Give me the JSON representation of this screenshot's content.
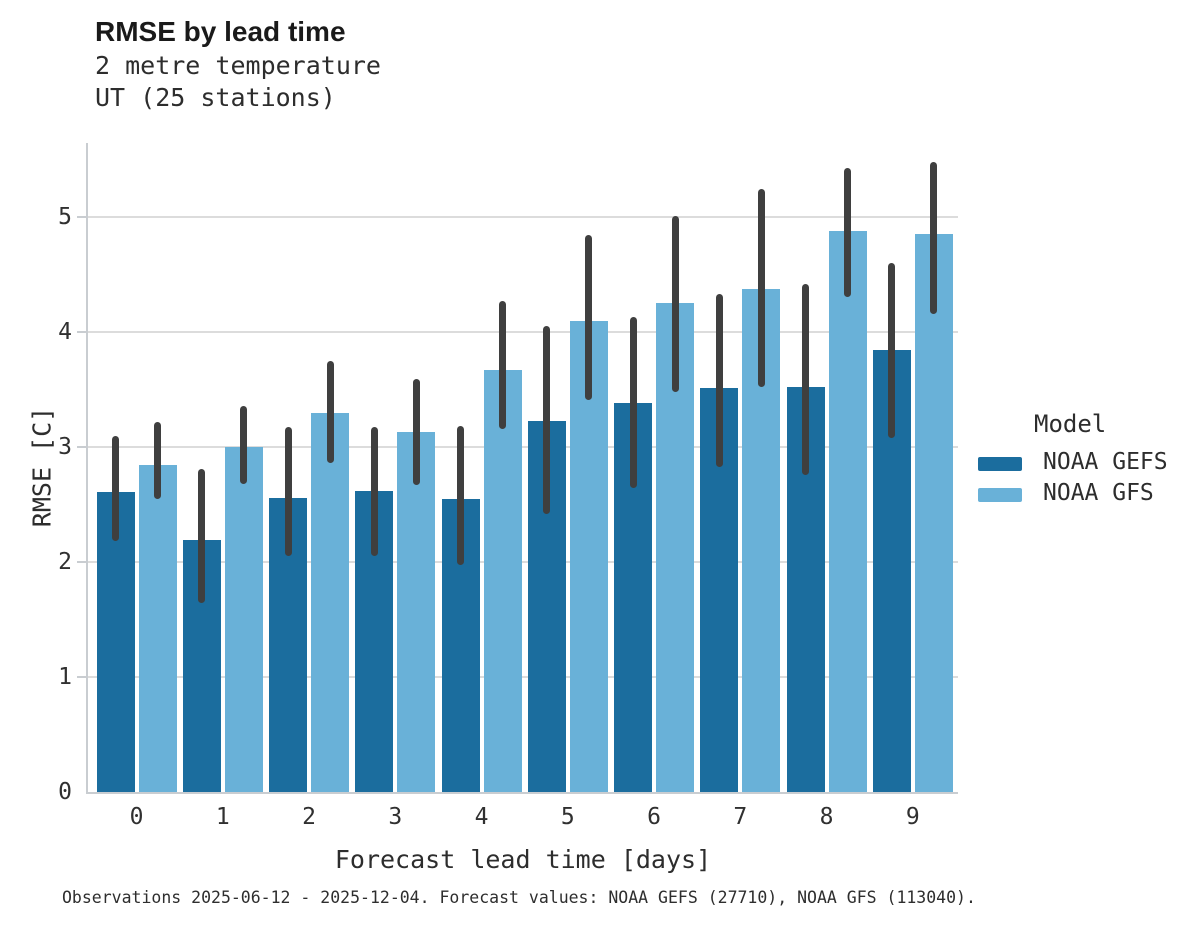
{
  "header": {
    "title": "RMSE by lead time",
    "subtitle_line1": "2 metre temperature",
    "subtitle_line2": "UT (25 stations)"
  },
  "chart_data": {
    "type": "bar",
    "title": "RMSE by lead time",
    "subtitle": [
      "2 metre temperature",
      "UT (25 stations)"
    ],
    "categories": [
      "0",
      "1",
      "2",
      "3",
      "4",
      "5",
      "6",
      "7",
      "8",
      "9"
    ],
    "xlabel": "Forecast lead time [days]",
    "ylabel": "RMSE [C]",
    "ylim": [
      0,
      5.65
    ],
    "yticks": [
      0,
      1,
      2,
      3,
      4,
      5
    ],
    "grid": true,
    "legend_title": "Model",
    "legend_position": "right",
    "error_bar_color": "#3f3f3f",
    "series": [
      {
        "name": "NOAA GEFS",
        "color": "#1b6d9e",
        "values": [
          2.61,
          2.19,
          2.56,
          2.62,
          2.55,
          3.23,
          3.38,
          3.51,
          3.52,
          3.84
        ],
        "err_low": [
          2.18,
          1.64,
          2.05,
          2.05,
          1.97,
          2.42,
          2.64,
          2.83,
          2.76,
          3.08
        ],
        "err_high": [
          3.1,
          2.81,
          3.17,
          3.17,
          3.18,
          4.05,
          4.13,
          4.33,
          4.42,
          4.6
        ]
      },
      {
        "name": "NOAA GFS",
        "color": "#69b1d8",
        "values": [
          2.84,
          3.0,
          3.3,
          3.13,
          3.67,
          4.1,
          4.25,
          4.37,
          4.88,
          4.85
        ],
        "err_low": [
          2.55,
          2.68,
          2.86,
          2.67,
          3.16,
          3.41,
          3.48,
          3.52,
          4.3,
          4.16
        ],
        "err_high": [
          3.22,
          3.36,
          3.75,
          3.59,
          4.27,
          4.84,
          5.01,
          5.24,
          5.43,
          5.48
        ]
      }
    ]
  },
  "caption": "Observations 2025-06-12 - 2025-12-04. Forecast values: NOAA GEFS (27710), NOAA GFS (113040)."
}
